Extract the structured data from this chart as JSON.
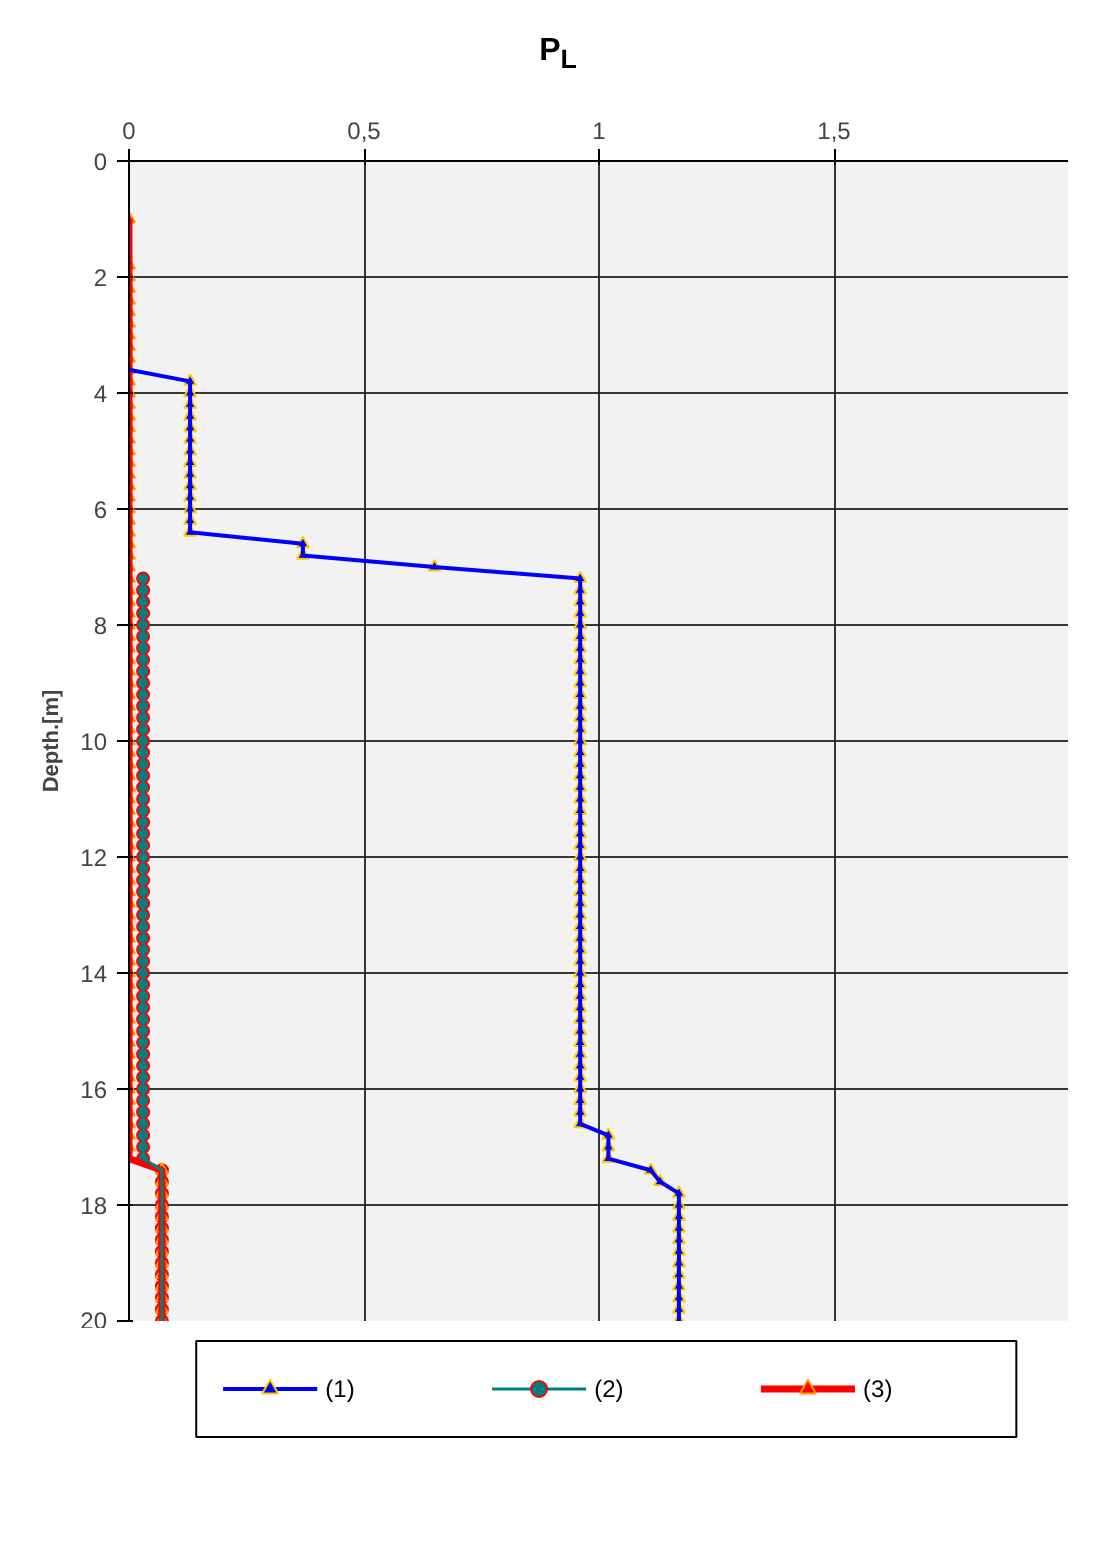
{
  "chart_data": {
    "type": "line",
    "title": "P$_{L}$",
    "ylabel": "Depth.[m]",
    "xlim": [
      0,
      2
    ],
    "xticks": [
      0,
      {
        "value": 0.5,
        "label": "0,5"
      },
      1,
      {
        "value": 1.5,
        "label": "1,5"
      }
    ],
    "ylim": [
      20,
      0
    ],
    "yticks": [
      0,
      2,
      4,
      6,
      8,
      10,
      12,
      14,
      16,
      18,
      20
    ],
    "grid": true,
    "legend": "bottom",
    "line_style": "solid",
    "series": [
      {
        "name": "(1)",
        "color": "#0000ff",
        "marker": "triangle",
        "x": [
          0,
          0.13,
          0.13,
          0.13,
          0.13,
          0.13,
          0.13,
          0.13,
          0.13,
          0.13,
          0.13,
          0.13,
          0.13,
          0.13,
          0.13,
          0.37,
          0.37,
          0.65,
          0.96,
          0.96,
          0.96,
          0.96,
          0.96,
          0.96,
          0.96,
          0.96,
          0.96,
          0.96,
          0.96,
          0.96,
          0.96,
          0.96,
          0.96,
          0.96,
          0.96,
          0.96,
          0.96,
          0.96,
          0.96,
          0.96,
          0.96,
          0.96,
          0.96,
          0.96,
          0.96,
          0.96,
          0.96,
          0.96,
          0.96,
          0.96,
          0.96,
          0.96,
          0.96,
          0.96,
          0.96,
          0.96,
          0.96,
          0.96,
          0.96,
          0.96,
          0.96,
          0.96,
          0.96,
          0.96,
          0.96,
          0.96,
          1.02,
          1.02,
          1.02,
          1.11,
          1.13,
          1.17,
          1.17,
          1.17,
          1.17,
          1.17,
          1.17,
          1.17,
          1.17,
          1.17,
          1.17,
          1.17,
          1.17
        ],
        "values": [
          3.6,
          3.8,
          4,
          4.2,
          4.4,
          4.6,
          4.8,
          5,
          5.2,
          5.4,
          5.6,
          5.8,
          6,
          6.2,
          6.4,
          6.6,
          6.8,
          7,
          7.2,
          7.4,
          7.6,
          7.8,
          8,
          8.2,
          8.4,
          8.6,
          8.8,
          9,
          9.2,
          9.4,
          9.6,
          9.8,
          10,
          10.2,
          10.4,
          10.6,
          10.8,
          11,
          11.2,
          11.4,
          11.6,
          11.8,
          12,
          12.2,
          12.4,
          12.6,
          12.8,
          13,
          13.2,
          13.4,
          13.6,
          13.8,
          14,
          14.2,
          14.4,
          14.6,
          14.8,
          15,
          15.2,
          15.4,
          15.6,
          15.8,
          16,
          16.2,
          16.4,
          16.6,
          16.8,
          17,
          17.2,
          17.4,
          17.6,
          17.8,
          18,
          18.2,
          18.4,
          18.6,
          18.8,
          19,
          19.2,
          19.4,
          19.6,
          19.8,
          20
        ]
      },
      {
        "name": "(2)",
        "color": "#008080",
        "marker": "circle",
        "x": [
          0.03,
          0.03,
          0.03,
          0.03,
          0.03,
          0.03,
          0.03,
          0.03,
          0.03,
          0.03,
          0.03,
          0.03,
          0.03,
          0.03,
          0.03,
          0.03,
          0.03,
          0.03,
          0.03,
          0.03,
          0.03,
          0.03,
          0.03,
          0.03,
          0.03,
          0.03,
          0.03,
          0.03,
          0.03,
          0.03,
          0.03,
          0.03,
          0.03,
          0.03,
          0.03,
          0.03,
          0.03,
          0.03,
          0.03,
          0.03,
          0.03,
          0.03,
          0.03,
          0.03,
          0.03,
          0.03,
          0.03,
          0.03,
          0.03,
          0.03,
          0.03,
          0.07,
          0.07,
          0.07,
          0.07,
          0.07,
          0.07,
          0.07,
          0.07,
          0.07,
          0.07,
          0.07,
          0.07,
          0.07,
          0.07
        ],
        "values": [
          7.2,
          7.4,
          7.6,
          7.8,
          8,
          8.2,
          8.4,
          8.6,
          8.8,
          9,
          9.2,
          9.4,
          9.6,
          9.8,
          10,
          10.2,
          10.4,
          10.6,
          10.8,
          11,
          11.2,
          11.4,
          11.6,
          11.8,
          12,
          12.2,
          12.4,
          12.6,
          12.8,
          13,
          13.2,
          13.4,
          13.6,
          13.8,
          14,
          14.2,
          14.4,
          14.6,
          14.8,
          15,
          15.2,
          15.4,
          15.6,
          15.8,
          16,
          16.2,
          16.4,
          16.6,
          16.8,
          17,
          17.2,
          17.4,
          17.6,
          17.8,
          18,
          18.2,
          18.4,
          18.6,
          18.8,
          19,
          19.2,
          19.4,
          19.6,
          19.8,
          20
        ]
      },
      {
        "name": "(3)",
        "color": "#ff0000",
        "marker": "triangle",
        "x": [
          0,
          0,
          0,
          0,
          0,
          0,
          0,
          0,
          0,
          0,
          0,
          0,
          0,
          0,
          0,
          0,
          0,
          0,
          0,
          0,
          0,
          0,
          0,
          0,
          0,
          0,
          0,
          0,
          0,
          0,
          0,
          0,
          0,
          0,
          0,
          0,
          0,
          0,
          0,
          0,
          0,
          0,
          0,
          0,
          0,
          0,
          0,
          0,
          0,
          0,
          0,
          0,
          0,
          0,
          0,
          0,
          0,
          0,
          0,
          0,
          0,
          0,
          0,
          0,
          0,
          0,
          0,
          0,
          0,
          0,
          0,
          0,
          0,
          0,
          0,
          0,
          0,
          0,
          0,
          0.07,
          0.07,
          0.07,
          0.07,
          0.07,
          0.07,
          0.07,
          0.07,
          0.07,
          0.07,
          0.07,
          0.07,
          0.07,
          0.07
        ],
        "values": [
          1,
          1.8,
          2,
          2.2,
          2.4,
          2.6,
          2.8,
          3,
          3.2,
          3.4,
          3.6,
          3.8,
          4,
          4.2,
          4.4,
          4.6,
          4.8,
          5,
          5.2,
          5.4,
          5.6,
          5.8,
          6,
          6.2,
          6.4,
          6.6,
          6.8,
          7,
          7.2,
          7.4,
          7.6,
          7.8,
          8,
          8.2,
          8.4,
          8.6,
          8.8,
          9,
          9.2,
          9.4,
          9.6,
          9.8,
          10,
          10.2,
          10.4,
          10.6,
          10.8,
          11,
          11.2,
          11.4,
          11.6,
          11.8,
          12,
          12.2,
          12.4,
          12.6,
          12.8,
          13,
          13.2,
          13.4,
          13.6,
          13.8,
          14,
          14.2,
          14.4,
          14.6,
          14.8,
          15,
          15.2,
          15.4,
          15.6,
          15.8,
          16,
          16.2,
          16.4,
          16.6,
          16.8,
          17,
          17.2,
          17.4,
          17.6,
          17.8,
          18,
          18.2,
          18.4,
          18.6,
          18.8,
          19,
          19.2,
          19.4,
          19.6,
          19.8,
          20
        ]
      }
    ]
  }
}
